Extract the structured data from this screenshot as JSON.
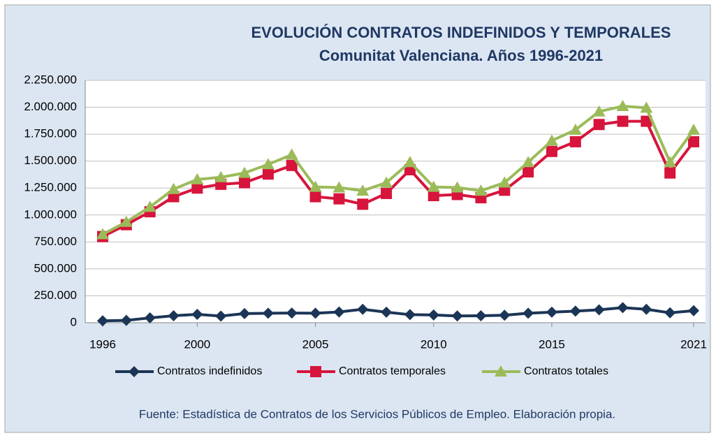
{
  "chart_data": {
    "type": "line",
    "title": "EVOLUCIÓN CONTRATOS INDEFINIDOS Y TEMPORALES",
    "subtitle": "Comunitat Valenciana. Años 1996-2021",
    "source": "Fuente: Estadística de Contratos de los Servicios Públicos de Empleo. Elaboración propia.",
    "x": [
      1996,
      1997,
      1998,
      1999,
      2000,
      2001,
      2002,
      2003,
      2004,
      2005,
      2006,
      2007,
      2008,
      2009,
      2010,
      2011,
      2012,
      2013,
      2014,
      2015,
      2016,
      2017,
      2018,
      2019,
      2020,
      2021
    ],
    "xlim": [
      1996,
      2021
    ],
    "xticks": [
      1996,
      2000,
      2005,
      2010,
      2015,
      2021
    ],
    "ylim": [
      0,
      2250000
    ],
    "yticks": [
      0,
      {
        "value": 250000,
        "label": "250.000"
      },
      {
        "value": 500000,
        "label": "500.000"
      },
      {
        "value": 750000,
        "label": "750.000"
      },
      {
        "value": 1000000,
        "label": "1.000.000"
      },
      {
        "value": 1250000,
        "label": "1.250.000"
      },
      {
        "value": 1500000,
        "label": "1.500.000"
      },
      {
        "value": 1750000,
        "label": "1.750.000"
      },
      {
        "value": 2000000,
        "label": "2.000.000"
      },
      {
        "value": 2250000,
        "label": "2.250.000"
      }
    ],
    "grid": true,
    "legend": "bottom",
    "series": [
      {
        "name": "Contratos indefinidos",
        "color": "#1b3556",
        "marker": "diamond",
        "values": [
          18000,
          22000,
          45000,
          65000,
          78000,
          62000,
          85000,
          88000,
          90000,
          88000,
          100000,
          125000,
          98000,
          75000,
          72000,
          63000,
          65000,
          70000,
          88000,
          98000,
          108000,
          120000,
          140000,
          125000,
          92000,
          112000
        ]
      },
      {
        "name": "Contratos temporales",
        "color": "#d7143c",
        "marker": "square",
        "values": [
          800000,
          910000,
          1030000,
          1170000,
          1250000,
          1285000,
          1300000,
          1380000,
          1460000,
          1170000,
          1150000,
          1100000,
          1200000,
          1420000,
          1180000,
          1190000,
          1160000,
          1230000,
          1400000,
          1590000,
          1680000,
          1840000,
          1870000,
          1870000,
          1390000,
          1680000
        ]
      },
      {
        "name": "Contratos totales",
        "color": "#9bbb59",
        "marker": "triangle",
        "values": [
          820000,
          935000,
          1075000,
          1240000,
          1330000,
          1350000,
          1390000,
          1470000,
          1560000,
          1260000,
          1255000,
          1225000,
          1300000,
          1490000,
          1260000,
          1255000,
          1225000,
          1300000,
          1490000,
          1690000,
          1790000,
          1960000,
          2010000,
          1995000,
          1490000,
          1790000
        ]
      }
    ]
  }
}
